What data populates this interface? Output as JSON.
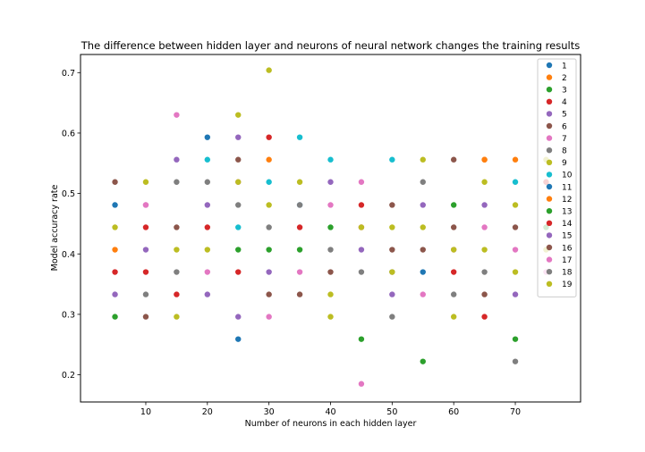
{
  "chart_data": {
    "type": "scatter",
    "title": "The difference between hidden layer and neurons of neural network changes the training results",
    "xlabel": "Number of neurons in each hidden layer",
    "ylabel": "Model accuracy rate",
    "xlim": [
      -0.6,
      80.6
    ],
    "ylim": [
      0.155,
      0.73
    ],
    "xticks": [
      10,
      20,
      30,
      40,
      50,
      60,
      70
    ],
    "yticks": [
      0.2,
      0.3,
      0.4,
      0.5,
      0.6,
      0.7
    ],
    "ytick_labels": [
      "0.2",
      "0.3",
      "0.4",
      "0.5",
      "0.6",
      "0.7"
    ],
    "legend_location": "top-right",
    "series": [
      {
        "name": "1",
        "color": "#1f77b4",
        "points": [
          [
            5,
            0.481
          ],
          [
            20,
            0.593
          ],
          [
            25,
            0.259
          ]
        ]
      },
      {
        "name": "2",
        "color": "#ff7f0e",
        "points": [
          [
            5,
            0.407
          ],
          [
            30,
            0.556
          ],
          [
            65,
            0.556
          ],
          [
            70,
            0.556
          ]
        ]
      },
      {
        "name": "3",
        "color": "#2ca02c",
        "points": [
          [
            5,
            0.296
          ],
          [
            45,
            0.259
          ],
          [
            55,
            0.222
          ],
          [
            70,
            0.259
          ]
        ]
      },
      {
        "name": "4",
        "color": "#d62728",
        "points": [
          [
            5,
            0.37
          ],
          [
            10,
            0.37
          ],
          [
            25,
            0.37
          ],
          [
            30,
            0.593
          ],
          [
            45,
            0.481
          ],
          [
            65,
            0.296
          ]
        ]
      },
      {
        "name": "5",
        "color": "#9467bd",
        "points": [
          [
            5,
            0.333
          ],
          [
            15,
            0.556
          ],
          [
            20,
            0.481
          ],
          [
            25,
            0.593
          ],
          [
            40,
            0.519
          ],
          [
            50,
            0.333
          ]
        ]
      },
      {
        "name": "6",
        "color": "#8c564b",
        "points": [
          [
            5,
            0.519
          ],
          [
            15,
            0.444
          ],
          [
            25,
            0.556
          ],
          [
            40,
            0.37
          ],
          [
            50,
            0.481
          ],
          [
            60,
            0.556
          ]
        ]
      },
      {
        "name": "7",
        "color": "#e377c2",
        "points": [
          [
            10,
            0.481
          ],
          [
            15,
            0.63
          ],
          [
            25,
            0.519
          ],
          [
            30,
            0.296
          ],
          [
            45,
            0.185
          ],
          [
            45,
            0.519
          ],
          [
            75,
            0.37
          ]
        ]
      },
      {
        "name": "8",
        "color": "#7f7f7f",
        "points": [
          [
            10,
            0.333
          ],
          [
            15,
            0.519
          ],
          [
            20,
            0.519
          ],
          [
            45,
            0.37
          ],
          [
            50,
            0.296
          ],
          [
            55,
            0.519
          ],
          [
            70,
            0.222
          ]
        ]
      },
      {
        "name": "9",
        "color": "#bcbd22",
        "points": [
          [
            5,
            0.444
          ],
          [
            10,
            0.519
          ],
          [
            15,
            0.296
          ],
          [
            25,
            0.63
          ],
          [
            30,
            0.704
          ],
          [
            35,
            0.519
          ],
          [
            40,
            0.296
          ],
          [
            55,
            0.556
          ],
          [
            60,
            0.296
          ],
          [
            75,
            0.556
          ]
        ]
      },
      {
        "name": "10",
        "color": "#17becf",
        "points": [
          [
            20,
            0.556
          ],
          [
            25,
            0.444
          ],
          [
            30,
            0.519
          ],
          [
            35,
            0.593
          ],
          [
            40,
            0.556
          ],
          [
            50,
            0.556
          ],
          [
            70,
            0.519
          ]
        ]
      },
      {
        "name": "11",
        "color": "#1f77b4",
        "points": [
          [
            35,
            0.481
          ],
          [
            55,
            0.37
          ]
        ]
      },
      {
        "name": "12",
        "color": "#ff7f0e",
        "points": [
          [
            65,
            0.556
          ]
        ]
      },
      {
        "name": "13",
        "color": "#2ca02c",
        "points": [
          [
            25,
            0.407
          ],
          [
            30,
            0.407
          ],
          [
            35,
            0.407
          ],
          [
            40,
            0.444
          ],
          [
            60,
            0.481
          ],
          [
            75,
            0.444
          ]
        ]
      },
      {
        "name": "14",
        "color": "#d62728",
        "points": [
          [
            10,
            0.444
          ],
          [
            15,
            0.333
          ],
          [
            20,
            0.444
          ],
          [
            35,
            0.444
          ],
          [
            45,
            0.444
          ],
          [
            60,
            0.37
          ],
          [
            75,
            0.519
          ]
        ]
      },
      {
        "name": "15",
        "color": "#9467bd",
        "points": [
          [
            10,
            0.407
          ],
          [
            20,
            0.333
          ],
          [
            25,
            0.296
          ],
          [
            30,
            0.37
          ],
          [
            45,
            0.407
          ],
          [
            55,
            0.481
          ],
          [
            65,
            0.481
          ],
          [
            70,
            0.333
          ]
        ]
      },
      {
        "name": "16",
        "color": "#8c564b",
        "points": [
          [
            10,
            0.296
          ],
          [
            30,
            0.333
          ],
          [
            35,
            0.333
          ],
          [
            50,
            0.407
          ],
          [
            55,
            0.407
          ],
          [
            60,
            0.444
          ],
          [
            65,
            0.333
          ],
          [
            70,
            0.444
          ]
        ]
      },
      {
        "name": "17",
        "color": "#e377c2",
        "points": [
          [
            10,
            0.481
          ],
          [
            20,
            0.37
          ],
          [
            35,
            0.37
          ],
          [
            40,
            0.481
          ],
          [
            55,
            0.333
          ],
          [
            60,
            0.407
          ],
          [
            65,
            0.444
          ],
          [
            70,
            0.407
          ]
        ]
      },
      {
        "name": "18",
        "color": "#7f7f7f",
        "points": [
          [
            15,
            0.37
          ],
          [
            25,
            0.481
          ],
          [
            30,
            0.444
          ],
          [
            35,
            0.481
          ],
          [
            40,
            0.407
          ],
          [
            50,
            0.37
          ],
          [
            60,
            0.333
          ],
          [
            65,
            0.37
          ]
        ]
      },
      {
        "name": "19",
        "color": "#bcbd22",
        "points": [
          [
            15,
            0.407
          ],
          [
            20,
            0.407
          ],
          [
            25,
            0.519
          ],
          [
            30,
            0.481
          ],
          [
            40,
            0.333
          ],
          [
            45,
            0.444
          ],
          [
            50,
            0.37
          ],
          [
            50,
            0.444
          ],
          [
            55,
            0.444
          ],
          [
            60,
            0.407
          ],
          [
            65,
            0.407
          ],
          [
            65,
            0.519
          ],
          [
            70,
            0.37
          ],
          [
            70,
            0.481
          ],
          [
            75,
            0.407
          ]
        ]
      }
    ]
  }
}
